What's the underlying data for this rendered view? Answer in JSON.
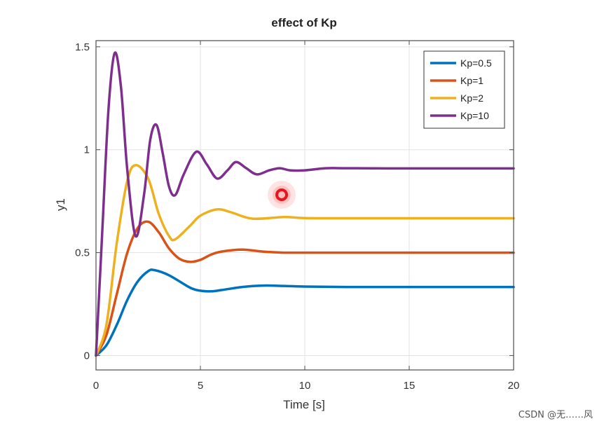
{
  "chart_data": {
    "type": "line",
    "title": "effect of Kp",
    "xlabel": "Time [s]",
    "ylabel": "y1",
    "xlim": [
      0,
      20
    ],
    "ylim": [
      -0.07,
      1.53
    ],
    "xticks": [
      0,
      5,
      10,
      15,
      20
    ],
    "xtick_labels": [
      "0",
      "5",
      "10",
      "15",
      "20"
    ],
    "yticks": [
      0,
      0.5,
      1,
      1.5
    ],
    "ytick_labels": [
      "0",
      "0.5",
      "1",
      "1.5"
    ],
    "grid": true,
    "legend_position": "top-right",
    "series": [
      {
        "name": "Kp=0.5",
        "color": "#0072BD",
        "x": [
          0,
          0.5,
          1,
          1.5,
          2,
          2.5,
          2.8,
          3.5,
          4.5,
          5,
          5.5,
          6,
          7,
          8,
          9,
          10,
          12,
          15,
          20
        ],
        "y": [
          0,
          0.05,
          0.15,
          0.27,
          0.36,
          0.41,
          0.415,
          0.39,
          0.33,
          0.315,
          0.312,
          0.318,
          0.333,
          0.34,
          0.338,
          0.335,
          0.333,
          0.333,
          0.333
        ]
      },
      {
        "name": "Kp=1",
        "color": "#D95319",
        "x": [
          0,
          0.5,
          1,
          1.5,
          2,
          2.5,
          3,
          3.5,
          4,
          4.5,
          5,
          5.5,
          6,
          7,
          8,
          9,
          10,
          12,
          15,
          20
        ],
        "y": [
          0,
          0.1,
          0.3,
          0.5,
          0.62,
          0.65,
          0.6,
          0.52,
          0.47,
          0.455,
          0.465,
          0.49,
          0.505,
          0.515,
          0.505,
          0.5,
          0.5,
          0.5,
          0.5,
          0.5
        ]
      },
      {
        "name": "Kp=2",
        "color": "#EDB120",
        "x": [
          0,
          0.5,
          1,
          1.5,
          1.9,
          2.5,
          3,
          3.5,
          3.8,
          4.5,
          5,
          5.8,
          6.5,
          7.5,
          9,
          10,
          12,
          15,
          20
        ],
        "y": [
          0,
          0.15,
          0.55,
          0.85,
          0.925,
          0.86,
          0.69,
          0.58,
          0.565,
          0.63,
          0.68,
          0.71,
          0.695,
          0.665,
          0.673,
          0.668,
          0.667,
          0.667,
          0.667
        ]
      },
      {
        "name": "Kp=10",
        "color": "#7E2F8E",
        "x": [
          0,
          0.3,
          0.6,
          0.9,
          1.2,
          1.5,
          1.9,
          2.3,
          2.6,
          2.9,
          3.2,
          3.5,
          3.8,
          4.2,
          4.8,
          5.3,
          5.8,
          6.3,
          6.7,
          7.2,
          7.7,
          8.3,
          8.8,
          9.3,
          10,
          11,
          12,
          14,
          17,
          20
        ],
        "y": [
          0,
          0.6,
          1.2,
          1.47,
          1.3,
          0.9,
          0.58,
          0.78,
          1.05,
          1.12,
          0.98,
          0.82,
          0.78,
          0.88,
          0.99,
          0.93,
          0.86,
          0.9,
          0.94,
          0.91,
          0.88,
          0.9,
          0.91,
          0.9,
          0.9,
          0.91,
          0.91,
          0.909,
          0.909,
          0.909
        ]
      }
    ]
  },
  "cursor_icon": "cursor-highlight-icon",
  "watermark": "CSDN @无……风"
}
